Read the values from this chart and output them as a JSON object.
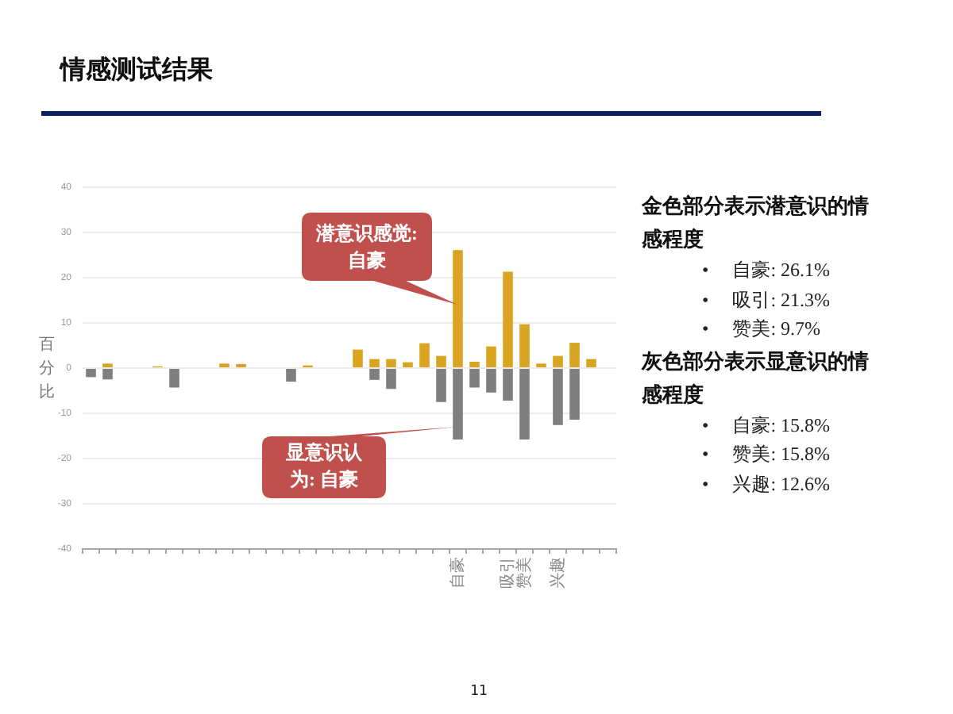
{
  "chart_data": {
    "type": "bar",
    "title": "情感测试结果",
    "ylabel": "百分比",
    "categories": [
      null,
      null,
      null,
      null,
      null,
      null,
      null,
      null,
      null,
      null,
      null,
      null,
      null,
      null,
      null,
      null,
      null,
      null,
      null,
      null,
      null,
      null,
      "自豪",
      null,
      null,
      "吸引",
      "赞美",
      null,
      "兴趣",
      null,
      null,
      null
    ],
    "series": [
      {
        "color": "#d9a521",
        "values": [
          null,
          1.0,
          null,
          null,
          0.4,
          null,
          null,
          null,
          1.0,
          0.9,
          null,
          null,
          null,
          0.6,
          null,
          null,
          4.1,
          2.0,
          2.0,
          1.3,
          5.5,
          2.7,
          26.1,
          1.4,
          4.8,
          21.3,
          9.7,
          1.0,
          2.7,
          5.6,
          2.0,
          null
        ]
      },
      {
        "color": "#7f7f7f",
        "values": [
          -2.0,
          -2.5,
          null,
          null,
          null,
          -4.3,
          null,
          null,
          null,
          null,
          null,
          null,
          -3.0,
          null,
          null,
          null,
          null,
          -2.6,
          -4.6,
          null,
          null,
          -7.5,
          -15.8,
          -4.3,
          -5.4,
          -7.2,
          -15.8,
          null,
          -12.6,
          -11.4,
          null,
          null
        ]
      }
    ],
    "stacked": true,
    "ylim": [
      -40,
      40
    ],
    "yticks": [
      -40,
      -30,
      -20,
      -10,
      0,
      10,
      20,
      30,
      40
    ],
    "grid": "y",
    "annotations": [
      {
        "text": "潜意识感觉: 自豪",
        "x": "自豪",
        "y": 14
      },
      {
        "text": "显意识认为: 自豪",
        "x": "自豪",
        "y": -13
      },
      "金色部分表示潜意识的情感程度",
      "•     自豪: 26.1%",
      "•     吸引: 21.3%",
      "•     赞美: 9.7%",
      "灰色部分表示显意识的情感程度",
      "•     自豪: 15.8%",
      "•     赞美: 15.8%",
      "•     兴趣: 12.6%",
      "11"
    ]
  }
}
